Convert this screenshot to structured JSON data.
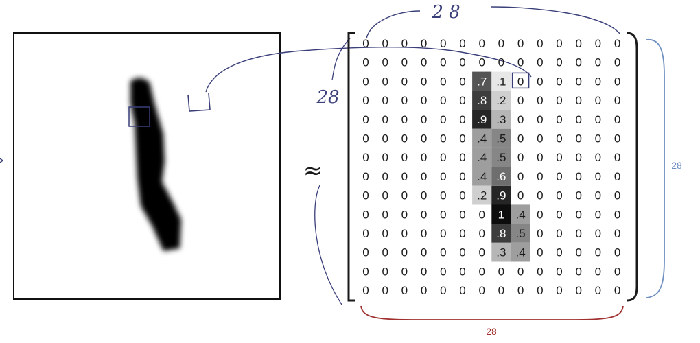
{
  "image_panel": {
    "description_label": ""
  },
  "approx_symbol": "≈",
  "handwritten": {
    "top_label": "2 8",
    "left_label": "28"
  },
  "dimension_labels": {
    "right": "28",
    "bottom": "28"
  },
  "colors": {
    "handwriting": "#3a3f7a",
    "right_brace": "#6f8fc0",
    "bottom_brace": "#a0302e",
    "bracket": "#1a1a1a",
    "stroke_fill": "#000000"
  },
  "matrix": {
    "rows": [
      [
        "0",
        "0",
        "0",
        "0",
        "0",
        "0",
        "0",
        "0",
        "0",
        "0",
        "0",
        "0",
        "0",
        "0"
      ],
      [
        "0",
        "0",
        "0",
        "0",
        "0",
        "0",
        "0",
        "0",
        "0",
        "0",
        "0",
        "0",
        "0",
        "0"
      ],
      [
        "0",
        "0",
        "0",
        "0",
        "0",
        "0",
        ".7",
        ".1",
        "0",
        "0",
        "0",
        "0",
        "0",
        "0"
      ],
      [
        "0",
        "0",
        "0",
        "0",
        "0",
        "0",
        ".8",
        ".2",
        "0",
        "0",
        "0",
        "0",
        "0",
        "0"
      ],
      [
        "0",
        "0",
        "0",
        "0",
        "0",
        "0",
        ".9",
        ".3",
        "0",
        "0",
        "0",
        "0",
        "0",
        "0"
      ],
      [
        "0",
        "0",
        "0",
        "0",
        "0",
        "0",
        ".4",
        ".5",
        "0",
        "0",
        "0",
        "0",
        "0",
        "0"
      ],
      [
        "0",
        "0",
        "0",
        "0",
        "0",
        "0",
        ".4",
        ".5",
        "0",
        "0",
        "0",
        "0",
        "0",
        "0"
      ],
      [
        "0",
        "0",
        "0",
        "0",
        "0",
        "0",
        ".4",
        ".6",
        "0",
        "0",
        "0",
        "0",
        "0",
        "0"
      ],
      [
        "0",
        "0",
        "0",
        "0",
        "0",
        "0",
        ".2",
        ".9",
        "0",
        "0",
        "0",
        "0",
        "0",
        "0"
      ],
      [
        "0",
        "0",
        "0",
        "0",
        "0",
        "0",
        "0",
        "1",
        ".4",
        "0",
        "0",
        "0",
        "0",
        "0"
      ],
      [
        "0",
        "0",
        "0",
        "0",
        "0",
        "0",
        "0",
        ".8",
        ".5",
        "0",
        "0",
        "0",
        "0",
        "0"
      ],
      [
        "0",
        "0",
        "0",
        "0",
        "0",
        "0",
        "0",
        ".3",
        ".4",
        "0",
        "0",
        "0",
        "0",
        "0"
      ],
      [
        "0",
        "0",
        "0",
        "0",
        "0",
        "0",
        "0",
        "0",
        "0",
        "0",
        "0",
        "0",
        "0",
        "0"
      ],
      [
        "0",
        "0",
        "0",
        "0",
        "0",
        "0",
        "0",
        "0",
        "0",
        "0",
        "0",
        "0",
        "0",
        "0"
      ]
    ],
    "shaded_cells": [
      {
        "row": 2,
        "col": 6,
        "gray": 0.7
      },
      {
        "row": 2,
        "col": 7,
        "gray": 0.1
      },
      {
        "row": 3,
        "col": 6,
        "gray": 0.8
      },
      {
        "row": 3,
        "col": 7,
        "gray": 0.2
      },
      {
        "row": 4,
        "col": 6,
        "gray": 0.9
      },
      {
        "row": 4,
        "col": 7,
        "gray": 0.3
      },
      {
        "row": 5,
        "col": 6,
        "gray": 0.4
      },
      {
        "row": 5,
        "col": 7,
        "gray": 0.5
      },
      {
        "row": 6,
        "col": 6,
        "gray": 0.4
      },
      {
        "row": 6,
        "col": 7,
        "gray": 0.5
      },
      {
        "row": 7,
        "col": 6,
        "gray": 0.4
      },
      {
        "row": 7,
        "col": 7,
        "gray": 0.6
      },
      {
        "row": 8,
        "col": 6,
        "gray": 0.2
      },
      {
        "row": 8,
        "col": 7,
        "gray": 0.9
      },
      {
        "row": 9,
        "col": 7,
        "gray": 1.0
      },
      {
        "row": 9,
        "col": 8,
        "gray": 0.4
      },
      {
        "row": 10,
        "col": 7,
        "gray": 0.8
      },
      {
        "row": 10,
        "col": 8,
        "gray": 0.5
      },
      {
        "row": 11,
        "col": 7,
        "gray": 0.3
      },
      {
        "row": 11,
        "col": 8,
        "gray": 0.4
      }
    ],
    "highlighted_cell": {
      "row": 2,
      "col": 8
    }
  }
}
